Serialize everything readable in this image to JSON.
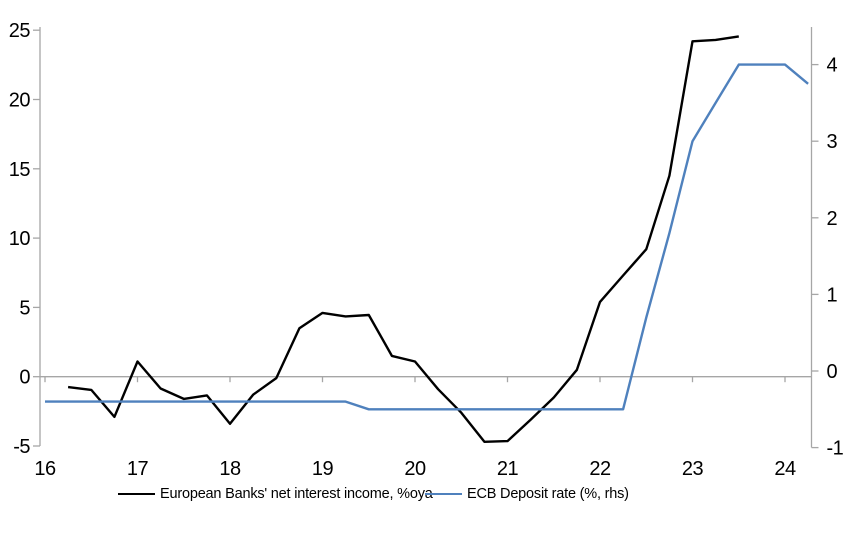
{
  "chart_data": {
    "type": "line",
    "title": "",
    "grid": false,
    "background": "#ffffff",
    "legend_position": "bottom",
    "x_axis": {
      "tick_values": [
        16,
        17,
        18,
        19,
        20,
        21,
        22,
        23,
        24
      ],
      "tick_labels": [
        "16",
        "17",
        "18",
        "19",
        "20",
        "21",
        "22",
        "23",
        "24"
      ],
      "min": 16,
      "max": 24.3
    },
    "left_axis": {
      "tick_values": [
        -5,
        0,
        5,
        10,
        15,
        20,
        25
      ],
      "tick_labels": [
        "-5",
        "0",
        "5",
        "10",
        "15",
        "20",
        "25"
      ],
      "min": -5,
      "max": 25.2
    },
    "right_axis": {
      "tick_values": [
        -1,
        0,
        1,
        2,
        3,
        4
      ],
      "tick_labels": [
        "-1",
        "0",
        "1",
        "2",
        "3",
        "4"
      ],
      "min": -1,
      "max": 4.55
    },
    "series": [
      {
        "id": "european-banks-net-interest-income",
        "name": "European Banks' net interest income, %oya",
        "axis": "left",
        "color": "#000000",
        "x": [
          16.25,
          16.5,
          16.75,
          17.0,
          17.25,
          17.5,
          17.75,
          18.0,
          18.25,
          18.5,
          18.75,
          19.0,
          19.25,
          19.5,
          19.75,
          20.0,
          20.25,
          20.5,
          20.75,
          21.0,
          21.25,
          21.5,
          21.75,
          22.0,
          22.25,
          22.5,
          22.75,
          23.0,
          23.25,
          23.5
        ],
        "values": [
          -0.75,
          -0.95,
          -2.9,
          1.1,
          -0.85,
          -1.6,
          -1.35,
          -3.4,
          -1.3,
          -0.1,
          3.5,
          4.6,
          4.35,
          4.45,
          1.5,
          1.1,
          -0.9,
          -2.6,
          -4.7,
          -4.65,
          -3.1,
          -1.5,
          0.5,
          5.4,
          7.3,
          9.2,
          14.5,
          24.2,
          24.3,
          24.55
        ]
      },
      {
        "id": "ecb-deposit-rate",
        "name": "ECB Deposit rate (%, rhs)",
        "axis": "right",
        "color": "#4f81bd",
        "x": [
          16.0,
          19.25,
          19.5,
          22.25,
          22.5,
          22.75,
          23.0,
          23.25,
          23.5,
          23.75,
          24.0,
          24.25
        ],
        "values": [
          -0.4,
          -0.4,
          -0.5,
          -0.5,
          0.7,
          1.8,
          3.0,
          3.5,
          4.0,
          4.0,
          4.0,
          3.75
        ]
      }
    ]
  },
  "colors": {
    "axis": "#a6a6a6",
    "zero_line": "#a6a6a6",
    "text": "#000000",
    "series_black": "#000000",
    "series_blue": "#4f81bd"
  }
}
